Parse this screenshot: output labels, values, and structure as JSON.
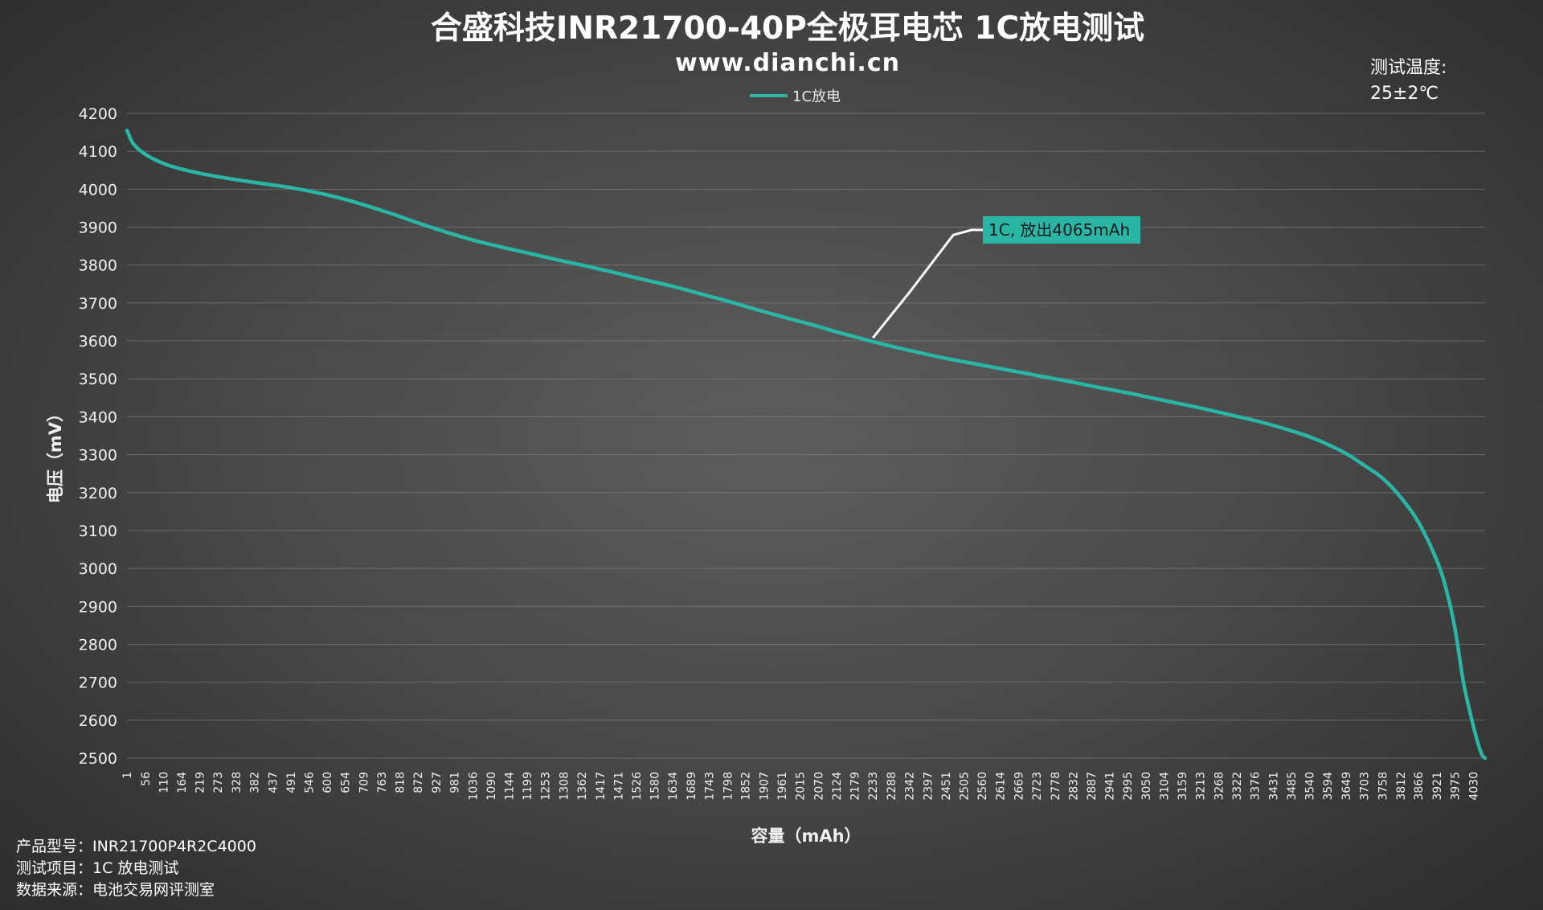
{
  "chart_data": {
    "type": "line",
    "title": "合盛科技INR21700-40P全极耳电芯 1C放电测试",
    "subtitle": "www.dianchi.cn",
    "xlabel": "容量（mAh）",
    "ylabel": "电压（mV）",
    "ylim": [
      2500,
      4200
    ],
    "yticks": [
      4200,
      4100,
      4000,
      3900,
      3800,
      3700,
      3600,
      3500,
      3400,
      3300,
      3200,
      3100,
      3000,
      2900,
      2800,
      2700,
      2600,
      2500
    ],
    "xlim": [
      1,
      4065
    ],
    "x_tick_labels": [
      "1",
      "56",
      "110",
      "164",
      "219",
      "273",
      "328",
      "382",
      "437",
      "491",
      "546",
      "600",
      "654",
      "709",
      "763",
      "818",
      "872",
      "927",
      "981",
      "1036",
      "1090",
      "1144",
      "1199",
      "1253",
      "1308",
      "1362",
      "1417",
      "1471",
      "1526",
      "1580",
      "1634",
      "1689",
      "1743",
      "1798",
      "1852",
      "1907",
      "1961",
      "2015",
      "2070",
      "2124",
      "2179",
      "2233",
      "2288",
      "2342",
      "2397",
      "2451",
      "2505",
      "2560",
      "2614",
      "2669",
      "2723",
      "2778",
      "2832",
      "2887",
      "2941",
      "2995",
      "3050",
      "3104",
      "3159",
      "3213",
      "3268",
      "3322",
      "3376",
      "3431",
      "3485",
      "3540",
      "3594",
      "3649",
      "3703",
      "3758",
      "3812",
      "3866",
      "3921",
      "3975",
      "4030"
    ],
    "grid": true,
    "legend_position": "top-center",
    "series": [
      {
        "name": "1C放电",
        "color": "#2ab5a5",
        "x": [
          1,
          20,
          56,
          110,
          164,
          219,
          273,
          328,
          382,
          437,
          491,
          546,
          600,
          654,
          709,
          763,
          818,
          872,
          927,
          981,
          1036,
          1090,
          1144,
          1199,
          1253,
          1308,
          1362,
          1417,
          1471,
          1526,
          1580,
          1634,
          1689,
          1743,
          1798,
          1852,
          1907,
          1961,
          2015,
          2070,
          2124,
          2179,
          2233,
          2288,
          2342,
          2397,
          2451,
          2505,
          2560,
          2614,
          2669,
          2723,
          2778,
          2832,
          2887,
          2941,
          2995,
          3050,
          3104,
          3159,
          3213,
          3268,
          3322,
          3376,
          3431,
          3485,
          3540,
          3594,
          3649,
          3703,
          3758,
          3812,
          3866,
          3921,
          3950,
          3975,
          4000,
          4020,
          4040,
          4055,
          4065
        ],
        "y": [
          4155,
          4120,
          4092,
          4068,
          4053,
          4042,
          4033,
          4025,
          4018,
          4011,
          4004,
          3995,
          3985,
          3973,
          3959,
          3944,
          3928,
          3911,
          3895,
          3880,
          3866,
          3854,
          3843,
          3832,
          3821,
          3810,
          3800,
          3789,
          3778,
          3766,
          3755,
          3744,
          3731,
          3718,
          3705,
          3691,
          3677,
          3664,
          3651,
          3638,
          3624,
          3611,
          3598,
          3586,
          3575,
          3564,
          3554,
          3545,
          3536,
          3527,
          3518,
          3509,
          3500,
          3491,
          3481,
          3472,
          3463,
          3453,
          3443,
          3433,
          3423,
          3412,
          3401,
          3390,
          3377,
          3363,
          3347,
          3327,
          3303,
          3272,
          3238,
          3188,
          3121,
          3020,
          2940,
          2840,
          2700,
          2620,
          2550,
          2510,
          2500
        ]
      }
    ],
    "annotation": {
      "text": "1C, 放出4065mAh",
      "at_x": 2233,
      "at_y": 3608,
      "background": "#2ab5a5"
    }
  },
  "test_temperature_label": "测试温度:",
  "test_temperature_value": "25±2℃",
  "info": {
    "model": "产品型号：INR21700P4R2C4000",
    "test_item": "测试项目：1C 放电测试",
    "source": "数据来源：电池交易网评测室"
  }
}
